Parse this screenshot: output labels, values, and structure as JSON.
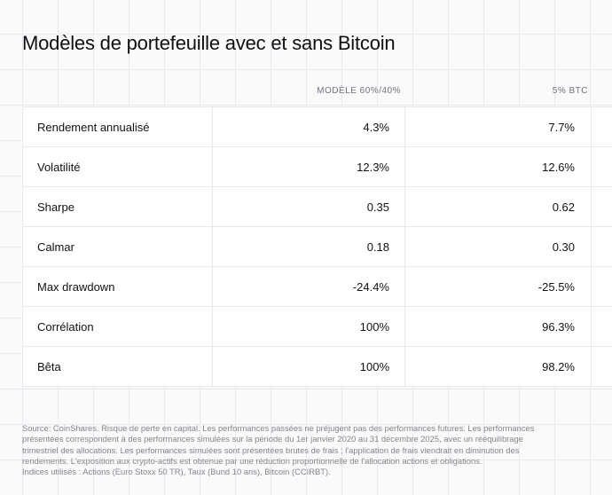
{
  "title": "Modèles de portefeuille avec et sans Bitcoin",
  "chart_data": {
    "type": "table",
    "title": "Modèles de portefeuille avec et sans Bitcoin",
    "columns": [
      "",
      "MODÈLE 60%/40%",
      "5% BTC"
    ],
    "rows": [
      {
        "label": "Rendement annualisé",
        "model_60_40": "4.3%",
        "btc_5": "7.7%"
      },
      {
        "label": "Volatilité",
        "model_60_40": "12.3%",
        "btc_5": "12.6%"
      },
      {
        "label": "Sharpe",
        "model_60_40": "0.35",
        "btc_5": "0.62"
      },
      {
        "label": "Calmar",
        "model_60_40": "0.18",
        "btc_5": "0.30"
      },
      {
        "label": "Max drawdown",
        "model_60_40": "-24.4%",
        "btc_5": "-25.5%"
      },
      {
        "label": "Corrélation",
        "model_60_40": "100%",
        "btc_5": "96.3%"
      },
      {
        "label": "Bêta",
        "model_60_40": "100%",
        "btc_5": "98.2%"
      }
    ]
  },
  "footnote": {
    "lines": [
      "Source: CoinShares. Risque de perte en capital. Les performances passées ne préjugent pas des performances futures. Les performances",
      "présentées correspondent à des performances simulées sur la période du 1er janvier 2020 au 31 décembre 2025, avec un rééquilibrage",
      "trimestriel des allocations. Les performances simulées sont présentées brutes de frais ; l'application de frais viendrait en diminution des",
      "rendements. L'exposition aux crypto-actifs est obtenue par une réduction proportionnelle de l'allocation actions et obligations.",
      "Indices utilisés : Actions (Euro Stoxx 50 TR), Taux (Bund 10 ans), Bitcoin (CCIRBT)."
    ]
  },
  "colors": {
    "background": "#fafafb",
    "grid_line": "#e9e9f2",
    "cell_background": "#ffffff",
    "cell_border": "#e8e8ed",
    "text_primary": "#111113",
    "column_header_text": "#6f7280",
    "footnote_text": "#83858c"
  }
}
